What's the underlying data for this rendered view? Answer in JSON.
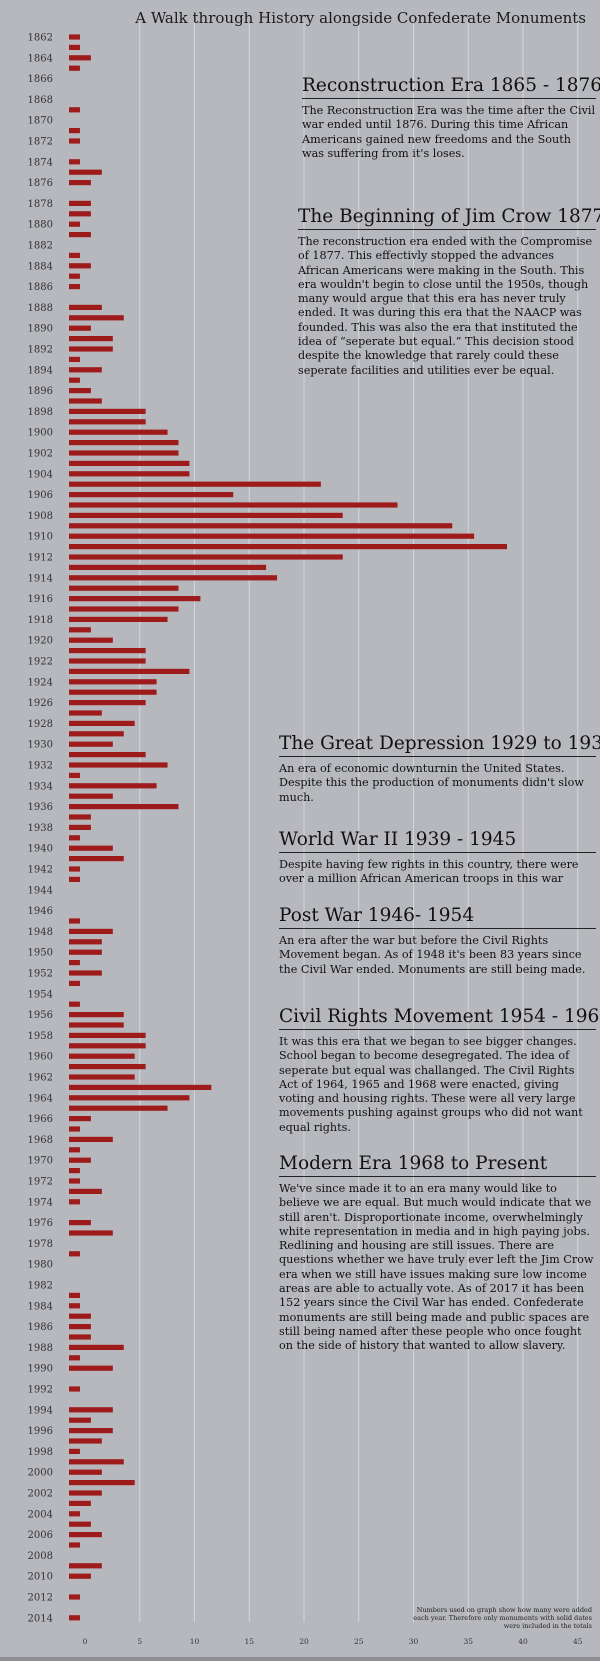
{
  "title": "A Walk through History alongside Confederate Monuments",
  "eras": [
    {
      "heading": "Reconstruction Era 1865 - 1876",
      "text": "The Reconstruction Era was the time after the Civil war ended until 1876. During this time African Americans gained new freedoms and the South was suffering from it's loses."
    },
    {
      "heading": "The Beginning of Jim Crow 1877",
      "text": "The reconstruction era ended with the Compromise of 1877. This effectivly stopped the advances African Americans were making in the South. This era wouldn't begin to close until the 1950s, though many would argue that this era has never truly ended. It was during this era that the NAACP was founded. This was also the era that instituted the idea of “seperate but equal.” This decision stood despite the knowledge that rarely could these seperate facilities and utilities ever be equal."
    },
    {
      "heading": "The Great Depression 1929 to 1939",
      "text": "An era of economic downturnin the United States. Despite this the production of monuments didn't slow much."
    },
    {
      "heading": "World War II 1939 - 1945",
      "text": "Despite having few rights in this country, there were over a million African American troops in this war"
    },
    {
      "heading": "Post War 1946- 1954",
      "text": "An era after the war but before the Civil Rights Movement began. As of 1948 it's been 83 years since the Civil War ended. Monuments are still being made."
    },
    {
      "heading": "Civil Rights Movement 1954 - 1968",
      "text": "It was this era that we began to see bigger changes. School began to become desegregated. The idea of seperate but equal was challanged. The Civil Rights Act of 1964, 1965 and 1968 were enacted, giving voting and housing rights. These were all very large movements pushing against groups who did not want equal rights."
    },
    {
      "heading": "Modern Era 1968 to Present",
      "text": "We've since made it to an era many would like to believe we are equal. But much would indicate that we still aren't. Disproportionate income, overwhelmingly white representation in media and in high paying jobs. Redlining and housing are still issues. There are questions whether we have truly ever left the Jim Crow era when we still have issues making sure low income areas are able to actually vote. As of 2017 it has been 152 years since the Civil War has ended. Confederate monuments are still being made and public spaces are still being named after these people who once fought on the side of history that wanted to allow slavery."
    }
  ],
  "footnote": "Numbers used on graph show how many were added each year. Therefore only monuments with solid dates were included in the totals",
  "colors": {
    "bar": "#9e1b1b",
    "background": "#b7b8bd",
    "grid": "#d4d5d9"
  },
  "chart_data": {
    "type": "bar",
    "orientation": "horizontal",
    "xlim": [
      0,
      45
    ],
    "xticks": [
      0,
      5,
      10,
      15,
      20,
      25,
      30,
      35,
      40,
      45
    ],
    "grid": "vertical",
    "categories": [
      1862,
      1863,
      1864,
      1865,
      1866,
      1867,
      1868,
      1869,
      1870,
      1871,
      1872,
      1873,
      1874,
      1875,
      1876,
      1877,
      1878,
      1879,
      1880,
      1881,
      1882,
      1883,
      1884,
      1885,
      1886,
      1887,
      1888,
      1889,
      1890,
      1891,
      1892,
      1893,
      1894,
      1895,
      1896,
      1897,
      1898,
      1899,
      1900,
      1901,
      1902,
      1903,
      1904,
      1905,
      1906,
      1907,
      1908,
      1909,
      1910,
      1911,
      1912,
      1913,
      1914,
      1915,
      1916,
      1917,
      1918,
      1919,
      1920,
      1921,
      1922,
      1923,
      1924,
      1925,
      1926,
      1927,
      1928,
      1929,
      1930,
      1931,
      1932,
      1933,
      1934,
      1935,
      1936,
      1937,
      1938,
      1939,
      1940,
      1941,
      1942,
      1943,
      1944,
      1945,
      1946,
      1947,
      1948,
      1949,
      1950,
      1951,
      1952,
      1953,
      1954,
      1955,
      1956,
      1957,
      1958,
      1959,
      1960,
      1961,
      1962,
      1963,
      1964,
      1965,
      1966,
      1967,
      1968,
      1969,
      1970,
      1971,
      1972,
      1973,
      1974,
      1975,
      1976,
      1977,
      1978,
      1979,
      1980,
      1981,
      1982,
      1983,
      1984,
      1985,
      1986,
      1987,
      1988,
      1989,
      1990,
      1991,
      1992,
      1993,
      1994,
      1995,
      1996,
      1997,
      1998,
      1999,
      2000,
      2001,
      2002,
      2003,
      2004,
      2005,
      2006,
      2007,
      2008,
      2009,
      2010,
      2011,
      2012,
      2013,
      2014
    ],
    "tick_labels": [
      "1862",
      "1864",
      "1866",
      "1868",
      "1870",
      "1872",
      "1874",
      "1876",
      "1878",
      "1880",
      "1882",
      "1884",
      "1886",
      "1888",
      "1890",
      "1892",
      "1894",
      "1896",
      "1898",
      "1900",
      "1902",
      "1904",
      "1906",
      "1908",
      "1910",
      "1912",
      "1914",
      "1916",
      "1918",
      "1920",
      "1922",
      "1924",
      "1926",
      "1928",
      "1930",
      "1932",
      "1934",
      "1936",
      "1938",
      "1940",
      "1942",
      "1944",
      "1946",
      "1948",
      "1950",
      "1952",
      "1954",
      "1956",
      "1958",
      "1960",
      "1962",
      "1964",
      "1966",
      "1968",
      "1970",
      "1972",
      "1974",
      "1976",
      "1978",
      "1980",
      "1982",
      "1984",
      "1986",
      "1988",
      "1990",
      "1992",
      "1994",
      "1996",
      "1998",
      "2000",
      "2002",
      "2004",
      "2006",
      "2008",
      "2010",
      "2012",
      "2014"
    ],
    "values": [
      1,
      1,
      2,
      1,
      0,
      0,
      0,
      1,
      0,
      1,
      1,
      0,
      1,
      3,
      2,
      0,
      2,
      2,
      1,
      2,
      0,
      1,
      2,
      1,
      1,
      0,
      3,
      5,
      2,
      4,
      4,
      1,
      3,
      1,
      2,
      3,
      7,
      7,
      9,
      10,
      10,
      11,
      11,
      23,
      15,
      30,
      25,
      35,
      37,
      40,
      25,
      18,
      19,
      10,
      12,
      10,
      9,
      2,
      4,
      7,
      7,
      11,
      8,
      8,
      7,
      3,
      6,
      5,
      4,
      7,
      9,
      1,
      8,
      4,
      10,
      2,
      2,
      1,
      4,
      5,
      1,
      1,
      0,
      0,
      0,
      1,
      4,
      3,
      3,
      1,
      3,
      1,
      0,
      1,
      5,
      5,
      7,
      7,
      6,
      7,
      6,
      13,
      11,
      9,
      2,
      1,
      4,
      1,
      2,
      1,
      1,
      3,
      1,
      0,
      2,
      4,
      0,
      1,
      0,
      0,
      0,
      1,
      1,
      2,
      2,
      2,
      5,
      1,
      4,
      0,
      1,
      0,
      4,
      2,
      4,
      3,
      1,
      5,
      3,
      6,
      3,
      2,
      1,
      2,
      3,
      1,
      0,
      3,
      2,
      0,
      1,
      0,
      1
    ]
  }
}
